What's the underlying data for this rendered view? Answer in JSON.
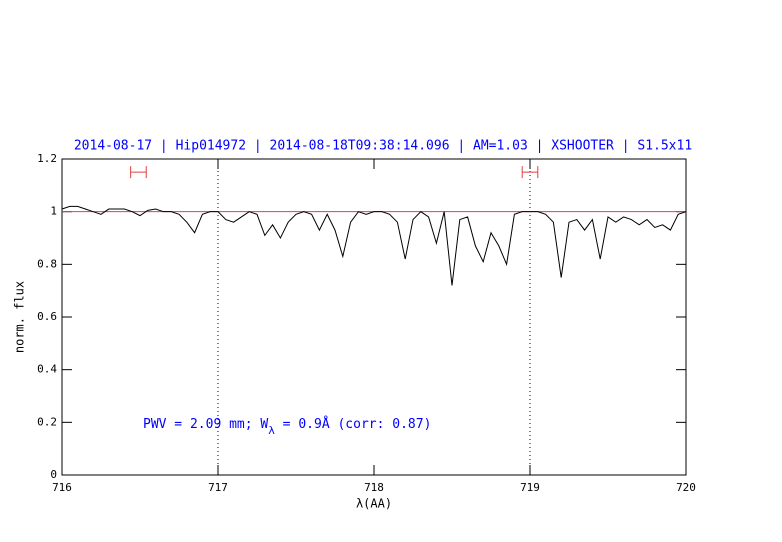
{
  "chart_data": {
    "type": "line",
    "title": "2014-08-17 | Hip014972 | 2014-08-18T09:38:14.096 | AM=1.03 | XSHOOTER | S1.5x11",
    "annotation": [
      "PWV = 2.09 mm; W",
      "λ",
      " = 0.9Å (corr: 0.87)"
    ],
    "xlabel": "λ(AA)",
    "ylabel": "norm. flux",
    "xlim": [
      716,
      720
    ],
    "ylim": [
      0,
      1.2
    ],
    "xticks": [
      716,
      717,
      718,
      719,
      720
    ],
    "yticks": [
      0,
      0.2,
      0.4,
      0.6,
      0.8,
      1,
      1.2
    ],
    "hline": {
      "value": 1,
      "color": "#e04040"
    },
    "vlines": [
      717,
      719
    ],
    "markers": [
      {
        "x": [
          716.44,
          716.54
        ],
        "y": 1.15,
        "color": "#e04040"
      },
      {
        "x": [
          718.95,
          719.05
        ],
        "y": 1.15,
        "color": "#e04040"
      }
    ],
    "x": [
      716,
      716.05,
      716.1,
      716.15,
      716.2,
      716.25,
      716.3,
      716.35,
      716.4,
      716.45,
      716.5,
      716.55,
      716.6,
      716.65,
      716.7,
      716.75,
      716.8,
      716.85,
      716.9,
      716.95,
      717,
      717.05,
      717.1,
      717.15,
      717.2,
      717.25,
      717.3,
      717.35,
      717.4,
      717.45,
      717.5,
      717.55,
      717.6,
      717.65,
      717.7,
      717.75,
      717.8,
      717.85,
      717.9,
      717.95,
      718,
      718.05,
      718.1,
      718.15,
      718.2,
      718.25,
      718.3,
      718.35,
      718.4,
      718.45,
      718.5,
      718.55,
      718.6,
      718.65,
      718.7,
      718.75,
      718.8,
      718.85,
      718.9,
      718.95,
      719,
      719.05,
      719.1,
      719.15,
      719.2,
      719.25,
      719.3,
      719.35,
      719.4,
      719.45,
      719.5,
      719.55,
      719.6,
      719.65,
      719.7,
      719.75,
      719.8,
      719.85,
      719.9,
      719.95,
      720
    ],
    "series": [
      {
        "color": "#000000",
        "values": [
          1.01,
          1.02,
          1.02,
          1.01,
          1.0,
          0.99,
          1.01,
          1.01,
          1.01,
          1.0,
          0.985,
          1.005,
          1.01,
          1.0,
          1.0,
          0.99,
          0.96,
          0.92,
          0.99,
          1.0,
          1.0,
          0.97,
          0.96,
          0.98,
          1.0,
          0.99,
          0.91,
          0.95,
          0.9,
          0.96,
          0.99,
          1.0,
          0.99,
          0.93,
          0.99,
          0.93,
          0.83,
          0.96,
          1.0,
          0.99,
          1.0,
          1.0,
          0.99,
          0.96,
          0.82,
          0.97,
          1.0,
          0.98,
          0.88,
          1.0,
          0.72,
          0.97,
          0.98,
          0.87,
          0.81,
          0.92,
          0.87,
          0.8,
          0.99,
          1.0,
          1.0,
          1.0,
          0.99,
          0.96,
          0.75,
          0.96,
          0.97,
          0.93,
          0.97,
          0.82,
          0.98,
          0.96,
          0.98,
          0.97,
          0.95,
          0.97,
          0.94,
          0.95,
          0.93,
          0.99,
          1.0
        ]
      }
    ]
  }
}
